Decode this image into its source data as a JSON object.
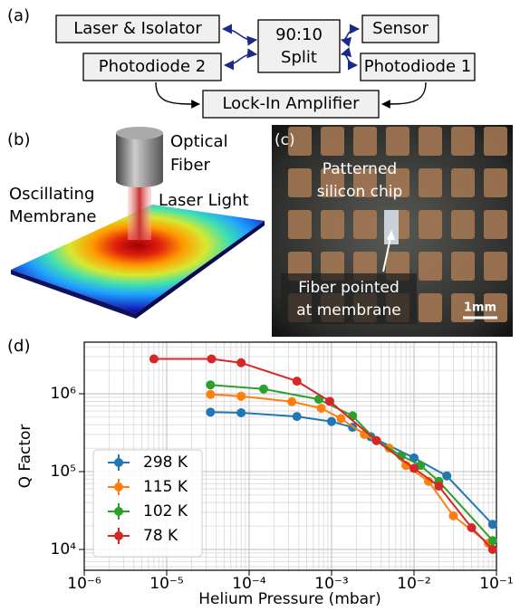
{
  "panel_a": {
    "label": "(a)",
    "nodes": [
      {
        "lines": [
          "Laser & Isolator"
        ]
      },
      {
        "lines": [
          "90:10",
          "Split"
        ]
      },
      {
        "lines": [
          "Sensor"
        ]
      },
      {
        "lines": [
          "Photodiode 2"
        ]
      },
      {
        "lines": [
          "Photodiode 1"
        ]
      },
      {
        "lines": [
          "Lock-In Amplifier"
        ]
      }
    ]
  },
  "panel_b": {
    "label": "(b)",
    "fiber": [
      "Optical",
      "Fiber"
    ],
    "membrane": [
      "Oscillating",
      "Membrane"
    ],
    "laser": "Laser Light"
  },
  "panel_c": {
    "label": "(c)",
    "chip": [
      "Patterned",
      "silicon chip"
    ],
    "fiber": [
      "Fiber pointed",
      "at membrane"
    ],
    "scale": "1mm"
  },
  "chart_data": {
    "type": "scatter-line",
    "label": "(d)",
    "x_label": "Helium Pressure (mbar)",
    "y_label": "Q Factor",
    "log_x": true,
    "log_y": true,
    "grid": true,
    "legend": "lower left",
    "xlim": [
      1e-06,
      0.1
    ],
    "ylim": [
      5400,
      4600000
    ],
    "xticks": [
      {
        "value": 1e-06,
        "label": "10⁻⁶"
      },
      {
        "value": 1e-05,
        "label": "10⁻⁵"
      },
      {
        "value": 0.0001,
        "label": "10⁻⁴"
      },
      {
        "value": 0.001,
        "label": "10⁻³"
      },
      {
        "value": 0.01,
        "label": "10⁻²"
      },
      {
        "value": 0.1,
        "label": "10⁻¹"
      }
    ],
    "yticks": [
      {
        "value": 10000,
        "label": "10⁴"
      },
      {
        "value": 100000,
        "label": "10⁵"
      },
      {
        "value": 1000000,
        "label": "10⁶"
      }
    ],
    "series": [
      {
        "name": "298 K",
        "color": "#1f77b4",
        "x": [
          3.4e-05,
          8e-05,
          0.00038,
          0.001,
          0.0018,
          0.003,
          0.01,
          0.025,
          0.09
        ],
        "values": [
          580000,
          570000,
          510000,
          440000,
          370000,
          280000,
          150000,
          88000,
          21000
        ]
      },
      {
        "name": "115 K",
        "color": "#ff7f0e",
        "x": [
          3.4e-05,
          8e-05,
          0.00033,
          0.00075,
          0.0013,
          0.0025,
          0.005,
          0.008,
          0.015,
          0.03,
          0.08
        ],
        "values": [
          980000,
          930000,
          790000,
          650000,
          480000,
          300000,
          200000,
          120000,
          75000,
          27000,
          12000
        ]
      },
      {
        "name": "102 K",
        "color": "#2ca02c",
        "x": [
          3.4e-05,
          0.00015,
          0.0007,
          0.0018,
          0.0035,
          0.007,
          0.012,
          0.02,
          0.09
        ],
        "values": [
          1300000,
          1150000,
          850000,
          520000,
          250000,
          160000,
          120000,
          75000,
          13000
        ]
      },
      {
        "name": "78 K",
        "color": "#d62728",
        "x": [
          7e-06,
          3.5e-05,
          8e-05,
          0.00038,
          0.00095,
          0.0035,
          0.01,
          0.02,
          0.05,
          0.09
        ],
        "values": [
          2800000,
          2800000,
          2500000,
          1450000,
          800000,
          250000,
          110000,
          65000,
          19000,
          10000
        ]
      }
    ]
  }
}
